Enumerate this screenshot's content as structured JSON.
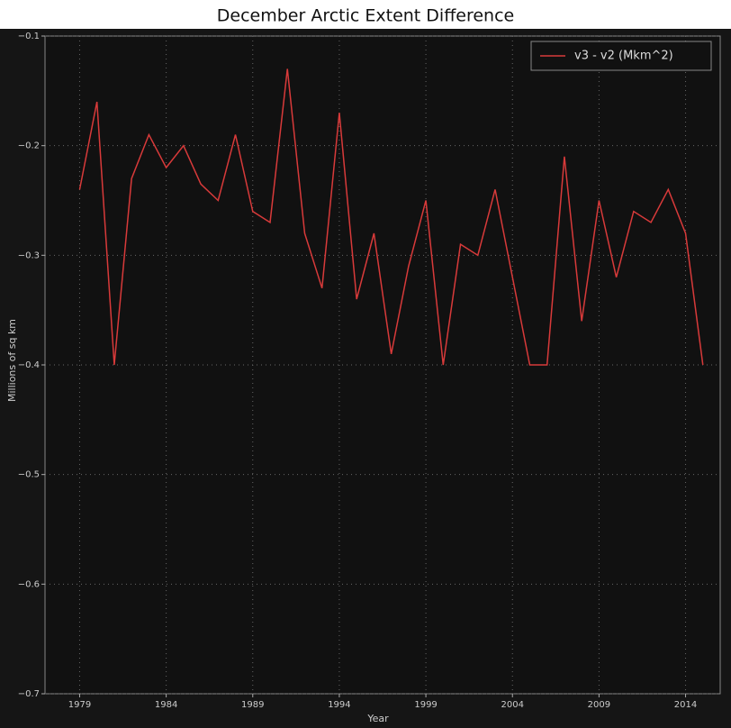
{
  "chart_data": {
    "type": "line",
    "title": "December Arctic Extent Difference",
    "y_label": "Millions of sq km",
    "x_label": "Year",
    "x": [
      1979,
      1980,
      1981,
      1982,
      1983,
      1984,
      1985,
      1986,
      1987,
      1988,
      1989,
      1990,
      1991,
      1992,
      1993,
      1994,
      1995,
      1996,
      1997,
      1998,
      1999,
      2000,
      2001,
      2002,
      2003,
      2004,
      2005,
      2006,
      2007,
      2008,
      2009,
      2010,
      2011,
      2012,
      2013,
      2014,
      2015
    ],
    "series": [
      {
        "name": "v3 - v2 (Mkm^2)",
        "color": "#d83a3a",
        "values": [
          -0.24,
          -0.16,
          -0.4,
          -0.23,
          -0.19,
          -0.22,
          -0.2,
          -0.235,
          -0.25,
          -0.19,
          -0.26,
          -0.27,
          -0.13,
          -0.28,
          -0.33,
          -0.17,
          -0.34,
          -0.28,
          -0.39,
          -0.31,
          -0.25,
          -0.4,
          -0.29,
          -0.3,
          -0.24,
          -0.32,
          -0.4,
          -0.4,
          -0.21,
          -0.36,
          -0.25,
          -0.32,
          -0.26,
          -0.27,
          -0.24,
          -0.28,
          -0.4
        ]
      }
    ],
    "xlim": [
      1977,
      2016
    ],
    "xticks": [
      1979,
      1984,
      1989,
      1994,
      1999,
      2004,
      2009,
      2014
    ],
    "ylim": [
      -0.7,
      -0.1
    ],
    "yticks": [
      {
        "value": -0.7,
        "label": "−0.7"
      },
      {
        "value": -0.6,
        "label": "−0.6"
      },
      {
        "value": -0.5,
        "label": "−0.5"
      },
      {
        "value": -0.4,
        "label": "−0.4"
      },
      {
        "value": -0.3,
        "label": "−0.3"
      },
      {
        "value": -0.2,
        "label": "−0.2"
      },
      {
        "value": -0.1,
        "label": "−0.1"
      }
    ],
    "grid": true,
    "legend": "upper-right"
  }
}
